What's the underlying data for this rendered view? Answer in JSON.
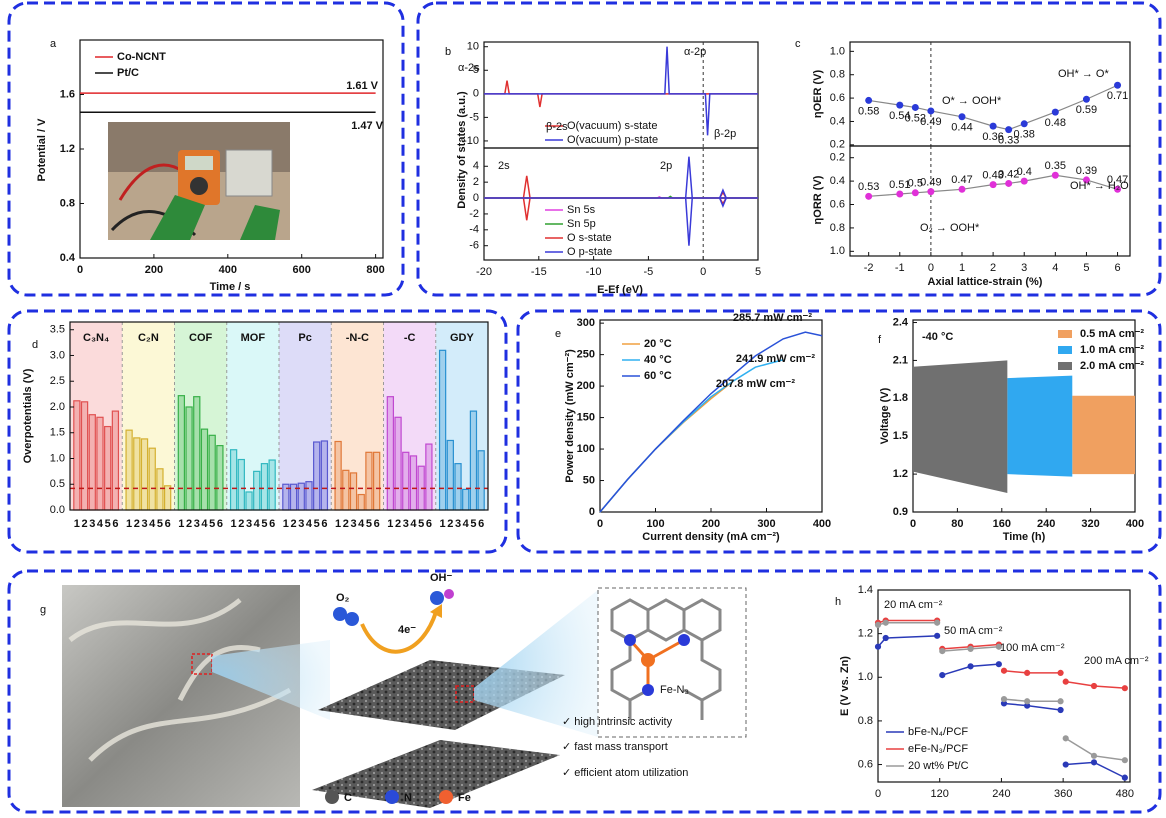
{
  "panels": [
    "a",
    "b",
    "c",
    "d",
    "e",
    "f",
    "g",
    "h"
  ],
  "schematic": {
    "labels": [
      "O₂",
      "OH⁻",
      "4e⁻",
      "Fe-N₃"
    ],
    "legend": [
      "C",
      "N",
      "Fe"
    ],
    "features": [
      "✓ high intrinsic activity",
      "✓ fast mass transport",
      "✓ efficient atom utilization"
    ]
  },
  "chart_data": [
    {
      "type": "line",
      "x": [
        0,
        800
      ],
      "xlim": [
        0,
        820
      ],
      "xticks": [
        0,
        200,
        400,
        600,
        800
      ],
      "ylim": [
        0.4,
        2.0
      ],
      "yticks": [
        0.4,
        0.8,
        1.2,
        1.6
      ],
      "xlabel": "Time / s",
      "ylabel": "Potential / V",
      "series": [
        {
          "name": "Co-NCNT",
          "color": "#e0262a",
          "values": [
            1.61,
            1.61
          ]
        },
        {
          "name": "Pt/C",
          "color": "#111111",
          "values": [
            1.47,
            1.47
          ]
        }
      ],
      "annotations": [
        "1.61 V",
        "1.47 V"
      ]
    },
    {
      "type": "line",
      "xlim": [
        -20,
        5
      ],
      "ylim": [
        -11.5,
        11
      ],
      "yticks": [
        -10,
        -5,
        0,
        5,
        10
      ],
      "vline": 0,
      "ylabel": "Density of states (a.u.)",
      "series": [
        {
          "name": "O(vacuum) s-state",
          "color": "#e03030",
          "x": [
            -20,
            -18.1,
            -17.9,
            -17.7,
            -15.1,
            -14.9,
            -14.7,
            5
          ],
          "values": [
            0,
            0,
            2.8,
            0,
            0,
            -2.8,
            0,
            0
          ]
        },
        {
          "name": "O(vacuum) p-state",
          "color": "#3a3ad8",
          "x": [
            -20,
            -3.5,
            -3.3,
            -3.1,
            0.2,
            0.4,
            0.6,
            5
          ],
          "values": [
            0,
            0,
            10,
            0,
            0,
            -8.8,
            0,
            0
          ]
        }
      ],
      "annotations": [
        "α-2s",
        "β-2s",
        "α-2p",
        "β-2p"
      ]
    },
    {
      "type": "line",
      "xlim": [
        -20,
        5
      ],
      "xticks": [
        -20,
        -15,
        -10,
        -5,
        0,
        5
      ],
      "ylim": [
        -7.8,
        6.3
      ],
      "yticks": [
        -6,
        -4,
        -2,
        0,
        2,
        4
      ],
      "vline": 0,
      "xlabel": "E-Ef (eV)",
      "series": [
        {
          "name": "Sn 5s",
          "color": "#e040e0",
          "x": [
            -20,
            -4.2,
            -4.0,
            -3.8,
            5
          ],
          "values": [
            0,
            0,
            0.15,
            0,
            0
          ]
        },
        {
          "name": "Sn 5p",
          "color": "#30a030",
          "x": [
            -20,
            -3.2,
            -3.0,
            -2.8,
            5
          ],
          "values": [
            0,
            0,
            0.2,
            0,
            0
          ]
        },
        {
          "name": "O s-state",
          "color": "#e03030",
          "x": [
            -20,
            -16.4,
            -16.1,
            -15.8,
            -16.1,
            -16.4,
            -15.8,
            1.5,
            1.8,
            2.1,
            1.8,
            1.5,
            2.1,
            5
          ],
          "values": [
            0,
            0,
            2.8,
            0,
            -2.8,
            0,
            0,
            0,
            0.7,
            0,
            -0.7,
            0,
            0,
            0
          ]
        },
        {
          "name": "O p-state",
          "color": "#3a3ad8",
          "x": [
            -20,
            -1.6,
            -1.3,
            -1.0,
            -1.3,
            -1.6,
            -1.0,
            1.5,
            1.8,
            2.1,
            1.8,
            1.5,
            2.1,
            5
          ],
          "values": [
            0,
            0,
            5.2,
            0,
            -6,
            0,
            0,
            0,
            1,
            0,
            -1,
            0,
            0,
            0
          ]
        }
      ],
      "annotations": [
        "2s",
        "2p"
      ]
    },
    {
      "type": "scatter-line",
      "x": [
        -2,
        -1,
        -0.5,
        0,
        1,
        2,
        2.5,
        3,
        4,
        5,
        6
      ],
      "xlim": [
        -2.6,
        6.4
      ],
      "vline": 0,
      "ylim": [
        0.19,
        1.08
      ],
      "yticks": [
        0.2,
        0.4,
        0.6,
        0.8,
        {
          "value": 1,
          "label": "1.0"
        }
      ],
      "ylabel": "ηOER (V)",
      "color": "#2a3ad8",
      "values": [
        0.58,
        0.54,
        0.52,
        0.49,
        0.44,
        0.36,
        0.33,
        0.38,
        0.48,
        0.59,
        0.71
      ],
      "annotations": [
        "O* → OOH*",
        "OH* → O*"
      ]
    },
    {
      "type": "scatter-line",
      "x": [
        -2,
        -1,
        -0.5,
        0,
        1,
        2,
        2.5,
        3,
        4,
        5,
        6
      ],
      "xlim": [
        -2.6,
        6.4
      ],
      "xticks": [
        -2,
        -1,
        0,
        1,
        2,
        3,
        4,
        5,
        6
      ],
      "vline": 0,
      "ylim": [
        1.04,
        0.1
      ],
      "yticks": [
        0.2,
        0.4,
        0.6,
        0.8,
        {
          "value": 1,
          "label": "1.0"
        }
      ],
      "ylabel": "ηORR (V)",
      "xlabel": "Axial lattice-strain (%)",
      "color": "#e030d8",
      "values": [
        0.53,
        0.51,
        0.5,
        0.49,
        0.47,
        0.43,
        0.42,
        0.4,
        0.35,
        0.39,
        0.47
      ],
      "annotations": [
        "O₂ → OOH*",
        "OH* → H₂O"
      ]
    },
    {
      "type": "grouped-bar",
      "categories": [
        "1",
        "2",
        "3",
        "4",
        "5",
        "6"
      ],
      "ylim": [
        0,
        3.65
      ],
      "yticks": [
        {
          "value": 0,
          "label": "0.0"
        },
        0.5,
        {
          "value": 1,
          "label": "1.0"
        },
        1.5,
        {
          "value": 2,
          "label": "2.0"
        },
        2.5,
        {
          "value": 3,
          "label": "3.0"
        },
        3.5
      ],
      "ylabel": "Overpotentials (V)",
      "reference_line": 0.42,
      "groups": [
        {
          "name": "C₃N₄",
          "background": "#f9cfcf",
          "color": "#e05050",
          "values": [
            2.12,
            2.1,
            1.85,
            1.8,
            1.62,
            1.92
          ]
        },
        {
          "name": "C₂N",
          "background": "#fbf6c8",
          "color": "#d4b030",
          "values": [
            1.55,
            1.4,
            1.38,
            1.2,
            0.8,
            0.47
          ]
        },
        {
          "name": "COF",
          "background": "#c8f2c8",
          "color": "#38b048",
          "values": [
            2.22,
            2.0,
            2.2,
            1.57,
            1.45,
            1.25
          ]
        },
        {
          "name": "MOF",
          "background": "#cdf6f6",
          "color": "#30b8c0",
          "values": [
            1.17,
            0.98,
            0.35,
            0.75,
            0.9,
            0.97
          ]
        },
        {
          "name": "Pc",
          "background": "#d2d0f6",
          "color": "#5858d0",
          "values": [
            0.5,
            0.5,
            0.52,
            0.55,
            1.32,
            1.34
          ]
        },
        {
          "name": "-N-C",
          "background": "#fcdcc4",
          "color": "#e07838",
          "values": [
            1.33,
            0.77,
            0.72,
            0.3,
            1.12,
            1.12
          ]
        },
        {
          "name": "-C",
          "background": "#efcdf5",
          "color": "#c048d0",
          "values": [
            2.2,
            1.8,
            1.12,
            1.05,
            0.85,
            1.28
          ]
        },
        {
          "name": "GDY",
          "background": "#c4e6f8",
          "color": "#2890d0",
          "values": [
            3.1,
            1.35,
            0.9,
            0.4,
            1.92,
            1.15
          ]
        }
      ]
    },
    {
      "type": "line",
      "x": [
        0,
        50,
        100,
        150,
        200,
        240,
        280,
        330,
        370,
        400
      ],
      "xlim": [
        0,
        400
      ],
      "xticks": [
        0,
        100,
        200,
        300,
        400
      ],
      "ylim": [
        0,
        305
      ],
      "yticks": [
        0,
        50,
        100,
        150,
        200,
        250,
        300
      ],
      "xlabel": "Current density (mA cm⁻²)",
      "ylabel": "Power density (mW cm⁻²)",
      "series": [
        {
          "name": "20 °C",
          "color": "#f0a040",
          "values": [
            0,
            52,
            100,
            142,
            180,
            207.8,
            null,
            null,
            null,
            null
          ]
        },
        {
          "name": "40 °C",
          "color": "#30b0f0",
          "values": [
            0,
            52,
            100,
            143,
            183,
            208,
            230,
            241.9,
            null,
            null
          ]
        },
        {
          "name": "60 °C",
          "color": "#2a52d8",
          "values": [
            0,
            52,
            100,
            145,
            188,
            218,
            248,
            275,
            285.7,
            280
          ]
        }
      ],
      "annotations": [
        "285.7 mW cm⁻²",
        "241.9 mW cm⁻²",
        "207.8 mW cm⁻²"
      ]
    },
    {
      "type": "band",
      "xlim": [
        0,
        400
      ],
      "xticks": [
        0,
        80,
        160,
        240,
        320,
        400
      ],
      "ylim": [
        0.9,
        2.42
      ],
      "yticks": [
        0.9,
        1.2,
        1.5,
        1.8,
        2.1,
        2.4
      ],
      "title": "-40 °C",
      "xlabel": "Time (h)",
      "ylabel": "Voltage (V)",
      "series": [
        {
          "name": "0.5 mA cm⁻²",
          "color": "#f0a060",
          "x": [
            287,
            400
          ],
          "upper": [
            1.82,
            1.82
          ],
          "lower": [
            1.2,
            1.2
          ]
        },
        {
          "name": "1.0 mA cm⁻²",
          "color": "#30a8f0",
          "x": [
            170,
            287
          ],
          "upper": [
            1.96,
            1.98
          ],
          "lower": [
            1.2,
            1.18
          ]
        },
        {
          "name": "2.0 mA cm⁻²",
          "color": "#707070",
          "x": [
            0,
            170
          ],
          "upper": [
            2.05,
            2.1
          ],
          "lower": [
            1.22,
            1.05
          ]
        }
      ]
    },
    {
      "type": "line",
      "markers": true,
      "x": [
        0,
        15,
        115,
        118,
        125,
        180,
        235,
        238,
        245,
        290,
        355,
        358,
        365,
        420,
        480
      ],
      "xlim": [
        0,
        490
      ],
      "xticks": [
        0,
        120,
        240,
        360,
        480
      ],
      "ylim": [
        0.52,
        1.4
      ],
      "yticks": [
        0.6,
        0.8,
        {
          "value": 1,
          "label": "1.0"
        },
        1.2,
        1.4
      ],
      "ylabel": "E (V vs. Zn)",
      "series": [
        {
          "name": "bFe-N₄/PCF",
          "color": "#2a3ab8",
          "values": [
            1.14,
            1.18,
            1.19,
            null,
            1.01,
            1.05,
            1.06,
            null,
            0.88,
            0.87,
            0.85,
            null,
            0.6,
            0.61,
            0.54
          ]
        },
        {
          "name": "eFe-N₃/PCF",
          "color": "#e84040",
          "values": [
            1.25,
            1.26,
            1.26,
            null,
            1.13,
            1.14,
            1.15,
            null,
            1.03,
            1.02,
            1.02,
            null,
            0.98,
            0.96,
            0.95
          ]
        },
        {
          "name": "20 wt% Pt/C",
          "color": "#9a9a9a",
          "values": [
            1.24,
            1.25,
            1.25,
            null,
            1.12,
            1.13,
            1.14,
            null,
            0.9,
            0.89,
            0.89,
            null,
            0.72,
            0.64,
            0.62
          ]
        }
      ],
      "annotations": [
        "20 mA cm⁻²",
        "50 mA cm⁻²",
        "100 mA cm⁻²",
        "200 mA cm⁻²"
      ]
    }
  ]
}
